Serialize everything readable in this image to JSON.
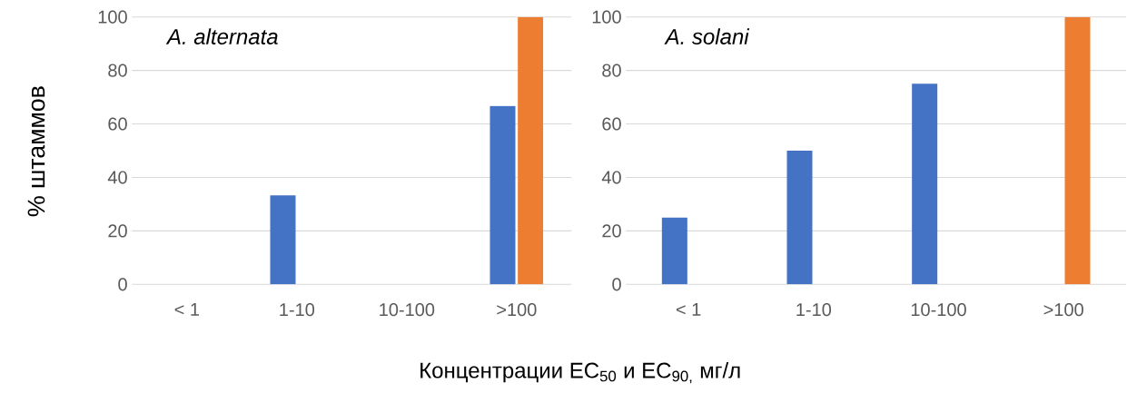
{
  "chart_data": [
    {
      "type": "bar",
      "title": "A. alternata",
      "ylabel": "% штаммов",
      "xlabel": "Концентрации EC$_{50}$ и EC$_{90,}$ мг/л",
      "categories": [
        "< 1",
        "1-10",
        "10-100",
        ">100"
      ],
      "series": [
        {
          "color": "#4472c4",
          "values": [
            0,
            33.3,
            0,
            66.7
          ]
        },
        {
          "color": "#ed7d31",
          "values": [
            0,
            0,
            0,
            100
          ]
        }
      ],
      "ylim": [
        0,
        100
      ],
      "yticks": [
        0,
        20,
        40,
        60,
        80,
        100
      ],
      "grid": "y"
    },
    {
      "type": "bar",
      "title": "A. solani",
      "categories": [
        "< 1",
        "1-10",
        "10-100",
        ">100"
      ],
      "series": [
        {
          "color": "#4472c4",
          "values": [
            25,
            50,
            75,
            0
          ]
        },
        {
          "color": "#ed7d31",
          "values": [
            0,
            0,
            0,
            100
          ]
        }
      ],
      "ylim": [
        0,
        100
      ],
      "yticks": [
        0,
        20,
        40,
        60,
        80,
        100
      ],
      "grid": "y"
    }
  ]
}
